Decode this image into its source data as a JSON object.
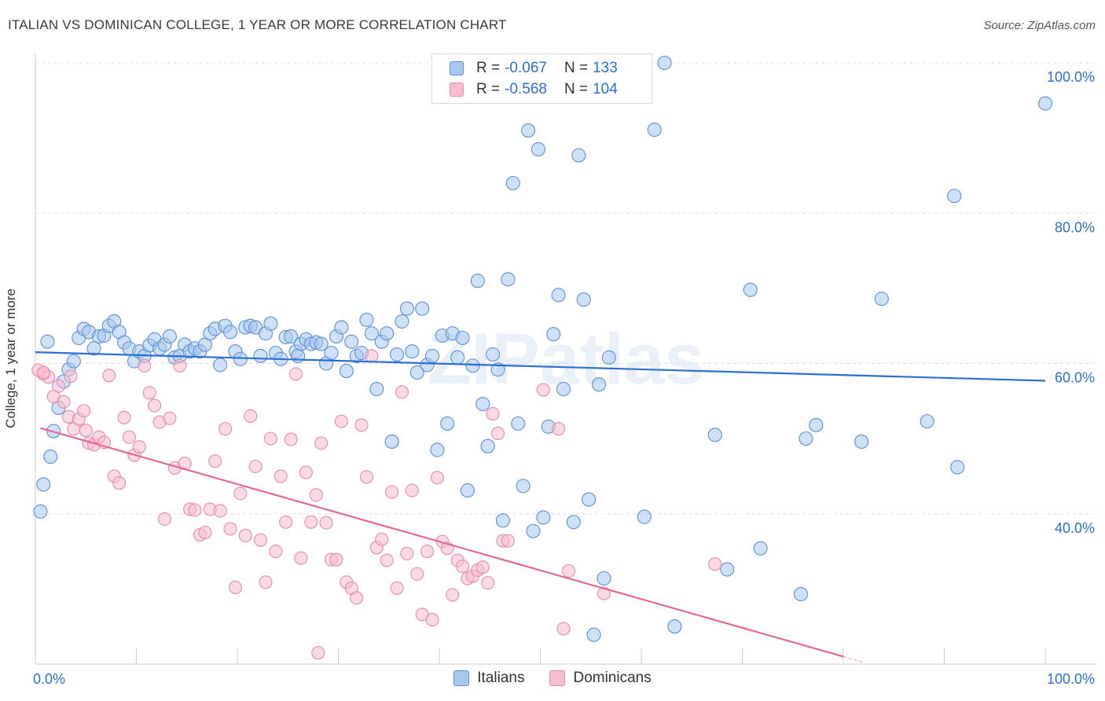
{
  "title": "ITALIAN VS DOMINICAN COLLEGE, 1 YEAR OR MORE CORRELATION CHART",
  "source": "Source: ZipAtlas.com",
  "watermark": "ZIPatlas",
  "legend": {
    "rows": [
      {
        "r_label": "R =",
        "r_value": "-0.067",
        "n_label": "N =",
        "n_value": "133"
      },
      {
        "r_label": "R =",
        "r_value": "-0.568",
        "n_label": "N =",
        "n_value": "104"
      }
    ]
  },
  "colors": {
    "italians_fill": "#a8c8f0",
    "italians_stroke": "#5b8fd6",
    "italians_line": "#2d6ed3",
    "dominicans_fill": "#f7bcd0",
    "dominicans_stroke": "#e58aab",
    "dominicans_line": "#e0689a",
    "tick_label": "#2d6ed3",
    "grid": "#dddddd"
  },
  "chart_data": {
    "type": "scatter",
    "title": "ITALIAN VS DOMINICAN COLLEGE, 1 YEAR OR MORE CORRELATION CHART",
    "xlabel": "",
    "ylabel": "College, 1 year or more",
    "xlim": [
      0,
      100
    ],
    "ylim": [
      20,
      100
    ],
    "x_tick_labels": [
      "0.0%",
      "100.0%"
    ],
    "y_ticks": [
      40,
      60,
      80,
      100
    ],
    "y_tick_labels": [
      "40.0%",
      "60.0%",
      "80.0%",
      "100.0%"
    ],
    "grid": true,
    "legend_position": "bottom",
    "series": [
      {
        "name": "Italians",
        "r": -0.067,
        "n": 133,
        "trend": [
          [
            0,
            61.5
          ],
          [
            100,
            57.7
          ]
        ],
        "points": [
          [
            0.5,
            40.3
          ],
          [
            0.8,
            43.9
          ],
          [
            1.5,
            47.6
          ],
          [
            1.8,
            51.0
          ],
          [
            2.3,
            54.1
          ],
          [
            2.8,
            57.6
          ],
          [
            3.3,
            59.2
          ],
          [
            3.8,
            60.3
          ],
          [
            4.3,
            63.4
          ],
          [
            4.8,
            64.6
          ],
          [
            5.3,
            64.2
          ],
          [
            5.8,
            62.0
          ],
          [
            6.3,
            63.6
          ],
          [
            6.8,
            63.7
          ],
          [
            7.3,
            65.0
          ],
          [
            7.8,
            65.6
          ],
          [
            8.3,
            64.2
          ],
          [
            8.8,
            62.8
          ],
          [
            9.3,
            62.0
          ],
          [
            9.8,
            60.3
          ],
          [
            10.3,
            61.6
          ],
          [
            10.8,
            61.0
          ],
          [
            11.3,
            62.4
          ],
          [
            11.8,
            63.2
          ],
          [
            12.3,
            62.0
          ],
          [
            12.8,
            62.5
          ],
          [
            13.3,
            63.6
          ],
          [
            13.8,
            60.8
          ],
          [
            14.3,
            61.0
          ],
          [
            14.8,
            62.5
          ],
          [
            15.3,
            61.6
          ],
          [
            15.8,
            62.0
          ],
          [
            16.3,
            61.6
          ],
          [
            16.8,
            62.5
          ],
          [
            17.3,
            64.0
          ],
          [
            17.8,
            64.6
          ],
          [
            18.3,
            59.8
          ],
          [
            18.8,
            65.0
          ],
          [
            19.3,
            64.2
          ],
          [
            19.8,
            61.6
          ],
          [
            20.3,
            60.6
          ],
          [
            20.8,
            64.8
          ],
          [
            21.3,
            65.0
          ],
          [
            21.8,
            64.8
          ],
          [
            22.3,
            61.0
          ],
          [
            22.8,
            64.0
          ],
          [
            23.3,
            65.3
          ],
          [
            23.8,
            61.4
          ],
          [
            24.3,
            60.6
          ],
          [
            24.8,
            63.5
          ],
          [
            25.3,
            63.6
          ],
          [
            25.8,
            61.6
          ],
          [
            26.3,
            62.6
          ],
          [
            26.8,
            63.2
          ],
          [
            27.3,
            62.6
          ],
          [
            27.8,
            62.8
          ],
          [
            28.3,
            62.6
          ],
          [
            28.8,
            60.0
          ],
          [
            29.3,
            61.4
          ],
          [
            29.8,
            63.6
          ],
          [
            30.3,
            64.8
          ],
          [
            30.8,
            59.0
          ],
          [
            31.3,
            62.9
          ],
          [
            31.8,
            61.0
          ],
          [
            32.3,
            61.4
          ],
          [
            32.8,
            65.8
          ],
          [
            33.3,
            64.0
          ],
          [
            33.8,
            56.6
          ],
          [
            34.3,
            62.9
          ],
          [
            34.8,
            64.0
          ],
          [
            35.3,
            49.6
          ],
          [
            35.8,
            61.2
          ],
          [
            36.3,
            65.6
          ],
          [
            36.8,
            67.3
          ],
          [
            37.3,
            61.6
          ],
          [
            37.8,
            58.8
          ],
          [
            38.3,
            67.3
          ],
          [
            38.8,
            59.8
          ],
          [
            39.3,
            61.0
          ],
          [
            39.8,
            48.5
          ],
          [
            40.3,
            63.7
          ],
          [
            40.8,
            52.0
          ],
          [
            41.3,
            64.0
          ],
          [
            41.8,
            60.8
          ],
          [
            42.3,
            63.4
          ],
          [
            42.8,
            43.1
          ],
          [
            43.3,
            59.7
          ],
          [
            43.8,
            71.0
          ],
          [
            44.3,
            54.6
          ],
          [
            44.8,
            49.0
          ],
          [
            45.3,
            61.2
          ],
          [
            45.8,
            59.2
          ],
          [
            46.3,
            39.1
          ],
          [
            46.8,
            71.2
          ],
          [
            47.3,
            84.0
          ],
          [
            47.8,
            52.0
          ],
          [
            48.3,
            43.7
          ],
          [
            48.8,
            91.0
          ],
          [
            49.3,
            37.7
          ],
          [
            49.8,
            88.5
          ],
          [
            50.3,
            39.5
          ],
          [
            50.8,
            51.6
          ],
          [
            51.3,
            63.9
          ],
          [
            51.8,
            69.1
          ],
          [
            52.3,
            56.6
          ],
          [
            52.8,
            97.2
          ],
          [
            53.3,
            38.9
          ],
          [
            53.8,
            87.7
          ],
          [
            54.3,
            68.5
          ],
          [
            54.8,
            41.9
          ],
          [
            55.3,
            23.9
          ],
          [
            55.8,
            57.2
          ],
          [
            56.3,
            31.4
          ],
          [
            56.8,
            60.8
          ],
          [
            60.3,
            39.6
          ],
          [
            61.3,
            91.1
          ],
          [
            62.3,
            100.0
          ],
          [
            63.3,
            25.0
          ],
          [
            67.3,
            50.5
          ],
          [
            68.5,
            32.6
          ],
          [
            70.8,
            69.8
          ],
          [
            71.8,
            35.4
          ],
          [
            75.8,
            29.3
          ],
          [
            76.3,
            50.0
          ],
          [
            77.3,
            51.8
          ],
          [
            81.8,
            49.6
          ],
          [
            83.8,
            68.6
          ],
          [
            88.3,
            52.3
          ],
          [
            91.0,
            82.3
          ],
          [
            91.3,
            46.2
          ],
          [
            100.0,
            94.6
          ],
          [
            1.2,
            62.9
          ],
          [
            26.0,
            61.0
          ]
        ]
      },
      {
        "name": "Dominicans",
        "r": -0.568,
        "n": 104,
        "trend": [
          [
            0.5,
            51.4
          ],
          [
            80.0,
            21.0
          ]
        ],
        "points": [
          [
            0.3,
            59.1
          ],
          [
            0.8,
            58.6
          ],
          [
            1.3,
            58.2
          ],
          [
            1.8,
            55.6
          ],
          [
            2.3,
            57.0
          ],
          [
            2.8,
            54.9
          ],
          [
            3.3,
            52.9
          ],
          [
            3.8,
            51.3
          ],
          [
            4.3,
            52.6
          ],
          [
            4.8,
            53.7
          ],
          [
            5.3,
            49.4
          ],
          [
            5.8,
            49.2
          ],
          [
            6.3,
            50.2
          ],
          [
            6.8,
            49.5
          ],
          [
            7.3,
            58.4
          ],
          [
            7.8,
            45.0
          ],
          [
            8.3,
            44.1
          ],
          [
            8.8,
            52.8
          ],
          [
            9.3,
            50.2
          ],
          [
            9.8,
            47.8
          ],
          [
            10.3,
            48.9
          ],
          [
            10.8,
            59.7
          ],
          [
            11.3,
            56.1
          ],
          [
            11.8,
            54.4
          ],
          [
            12.3,
            52.2
          ],
          [
            12.8,
            39.3
          ],
          [
            13.3,
            52.7
          ],
          [
            13.8,
            46.1
          ],
          [
            14.3,
            59.7
          ],
          [
            14.8,
            46.7
          ],
          [
            15.3,
            40.6
          ],
          [
            15.8,
            40.5
          ],
          [
            16.3,
            37.2
          ],
          [
            16.8,
            37.5
          ],
          [
            17.3,
            40.6
          ],
          [
            17.8,
            47.0
          ],
          [
            18.3,
            40.4
          ],
          [
            18.8,
            51.3
          ],
          [
            19.3,
            38.0
          ],
          [
            19.8,
            30.2
          ],
          [
            20.3,
            42.7
          ],
          [
            20.8,
            37.1
          ],
          [
            21.3,
            53.0
          ],
          [
            21.8,
            46.3
          ],
          [
            22.3,
            36.5
          ],
          [
            22.8,
            30.9
          ],
          [
            23.3,
            50.0
          ],
          [
            23.8,
            35.0
          ],
          [
            24.3,
            45.0
          ],
          [
            24.8,
            38.9
          ],
          [
            25.3,
            49.9
          ],
          [
            25.8,
            58.6
          ],
          [
            26.3,
            34.1
          ],
          [
            26.8,
            45.5
          ],
          [
            27.3,
            38.9
          ],
          [
            27.8,
            42.5
          ],
          [
            28.3,
            49.4
          ],
          [
            28.8,
            38.8
          ],
          [
            29.3,
            33.9
          ],
          [
            29.8,
            33.9
          ],
          [
            30.3,
            52.3
          ],
          [
            30.8,
            30.9
          ],
          [
            31.3,
            30.1
          ],
          [
            31.8,
            28.8
          ],
          [
            32.3,
            51.8
          ],
          [
            32.8,
            44.9
          ],
          [
            33.3,
            61.0
          ],
          [
            33.8,
            35.5
          ],
          [
            34.3,
            36.6
          ],
          [
            34.8,
            33.8
          ],
          [
            35.3,
            42.9
          ],
          [
            35.8,
            30.1
          ],
          [
            36.3,
            56.2
          ],
          [
            36.8,
            34.7
          ],
          [
            37.3,
            43.1
          ],
          [
            37.8,
            32.0
          ],
          [
            38.3,
            26.6
          ],
          [
            38.8,
            35.0
          ],
          [
            39.3,
            25.9
          ],
          [
            39.8,
            44.8
          ],
          [
            40.3,
            36.3
          ],
          [
            40.8,
            35.4
          ],
          [
            41.3,
            29.2
          ],
          [
            41.8,
            33.8
          ],
          [
            42.3,
            33.0
          ],
          [
            42.8,
            31.4
          ],
          [
            43.3,
            31.7
          ],
          [
            43.8,
            32.5
          ],
          [
            44.3,
            32.9
          ],
          [
            44.8,
            30.8
          ],
          [
            45.3,
            53.3
          ],
          [
            45.8,
            50.7
          ],
          [
            46.3,
            36.4
          ],
          [
            46.8,
            36.4
          ],
          [
            50.3,
            56.5
          ],
          [
            51.8,
            51.3
          ],
          [
            52.3,
            24.7
          ],
          [
            52.8,
            32.4
          ],
          [
            56.3,
            29.4
          ],
          [
            67.3,
            33.3
          ],
          [
            28.0,
            21.5
          ],
          [
            0.8,
            58.8
          ],
          [
            3.5,
            58.3
          ],
          [
            5.0,
            51.1
          ]
        ]
      }
    ]
  }
}
